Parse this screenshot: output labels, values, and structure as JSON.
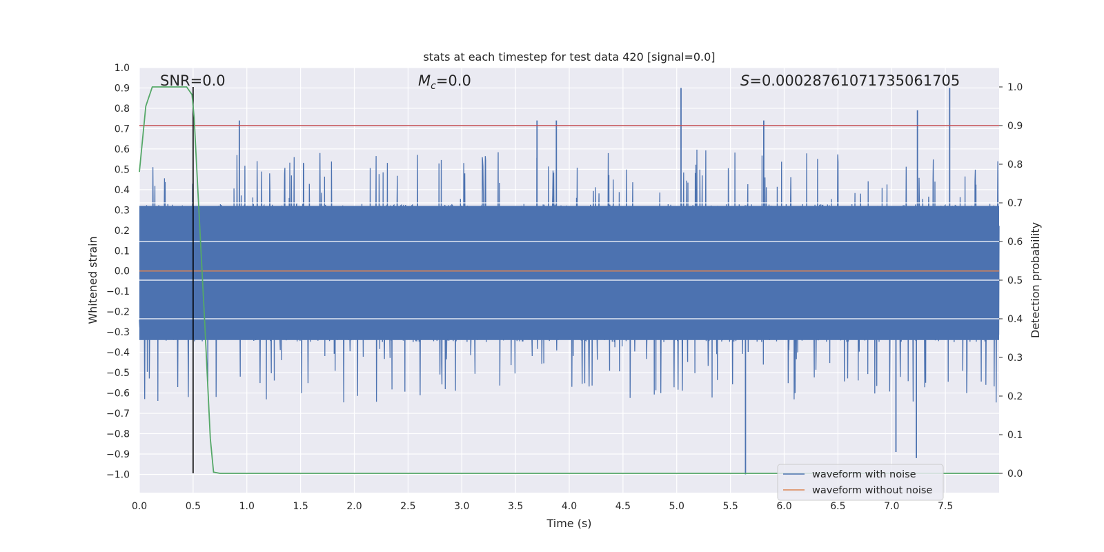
{
  "chart_data": {
    "type": "line",
    "title": "stats at each timestep for test data 420 [signal=0.0]",
    "xlabel": "Time (s)",
    "ylabel_left": "Whitened strain",
    "ylabel_right": "Detection probability",
    "xlim": [
      0.0,
      8.0
    ],
    "ylim_left": [
      -1.09,
      1.0
    ],
    "ylim_right": [
      -0.05,
      1.05
    ],
    "x_ticks": [
      0.0,
      0.5,
      1.0,
      1.5,
      2.0,
      2.5,
      3.0,
      3.5,
      4.0,
      4.5,
      5.0,
      5.5,
      6.0,
      6.5,
      7.0,
      7.5
    ],
    "x_tick_labels": [
      "0.0",
      "0.5",
      "1.0",
      "1.5",
      "2.0",
      "2.5",
      "3.0",
      "3.5",
      "4.0",
      "4.5",
      "5.0",
      "5.5",
      "6.0",
      "6.5",
      "7.0",
      "7.5"
    ],
    "y_left_ticks": [
      1.0,
      0.9,
      0.8,
      0.7,
      0.6,
      0.5,
      0.4,
      0.3,
      0.2,
      0.1,
      0.0,
      -0.1,
      -0.2,
      -0.3,
      -0.4,
      -0.5,
      -0.6,
      -0.7,
      -0.8,
      -0.9,
      -1.0
    ],
    "y_left_tick_labels": [
      "1.0",
      "0.9",
      "0.8",
      "0.7",
      "0.6",
      "0.5",
      "0.4",
      "0.3",
      "0.2",
      "0.1",
      "0.0",
      "−0.1",
      "−0.2",
      "−0.3",
      "−0.4",
      "−0.5",
      "−0.6",
      "−0.7",
      "−0.8",
      "−0.9",
      "−1.0"
    ],
    "y_right_ticks": [
      1.0,
      0.9,
      0.8,
      0.7,
      0.6,
      0.5,
      0.4,
      0.3,
      0.2,
      0.1,
      0.0
    ],
    "y_right_tick_labels": [
      "1.0",
      "0.9",
      "0.8",
      "0.7",
      "0.6",
      "0.5",
      "0.4",
      "0.3",
      "0.2",
      "0.1",
      "0.0"
    ],
    "annotations": {
      "snr": "SNR=0.0",
      "mc_symbol": "M",
      "mc_sub": "c",
      "mc_value": "=0.0",
      "s_symbol": "S",
      "s_value": "=0.00028761071735061705"
    },
    "legend": {
      "position": "lower-right",
      "entries": [
        "waveform with noise",
        "waveform without noise"
      ]
    },
    "series": [
      {
        "name": "waveform with noise",
        "axis": "left",
        "color": "#4c72b0",
        "description": "whitened noise, roughly ±0.35 envelope with spikes to about +0.90 and −1.0",
        "dense_envelope": [
          -0.35,
          0.33
        ],
        "peak_spikes": [
          {
            "x": 0.93,
            "y": 0.74
          },
          {
            "x": 5.04,
            "y": 0.9
          },
          {
            "x": 7.54,
            "y": 0.9
          },
          {
            "x": 7.24,
            "y": 0.79
          },
          {
            "x": 5.81,
            "y": 0.74
          },
          {
            "x": 3.7,
            "y": 0.74
          },
          {
            "x": 3.88,
            "y": 0.74
          },
          {
            "x": 5.64,
            "y": -1.0
          },
          {
            "x": 7.23,
            "y": -0.92
          },
          {
            "x": 7.04,
            "y": -0.89
          }
        ]
      },
      {
        "name": "waveform without noise",
        "axis": "left",
        "color": "#dd8452",
        "x": [
          0.0,
          8.0
        ],
        "y": [
          0.0,
          0.0
        ]
      },
      {
        "name": "detection probability",
        "axis": "right",
        "color": "#55a868",
        "x": [
          0.0,
          0.06,
          0.12,
          0.2,
          0.3,
          0.35,
          0.44,
          0.49,
          0.51,
          0.55,
          0.61,
          0.66,
          0.69,
          0.75,
          1.0,
          8.0
        ],
        "y": [
          0.78,
          0.95,
          1.0,
          1.0,
          1.0,
          1.0,
          1.0,
          0.98,
          0.92,
          0.7,
          0.38,
          0.09,
          0.003,
          0.0,
          0.0,
          0.0
        ]
      },
      {
        "name": "threshold",
        "axis": "right",
        "color": "#c44e52",
        "x": [
          0.0,
          8.0
        ],
        "y": [
          0.9,
          0.9
        ]
      }
    ],
    "vertical_line": {
      "x": 0.5,
      "color": "#000000",
      "y_right_range": [
        0.0,
        1.0
      ]
    }
  }
}
